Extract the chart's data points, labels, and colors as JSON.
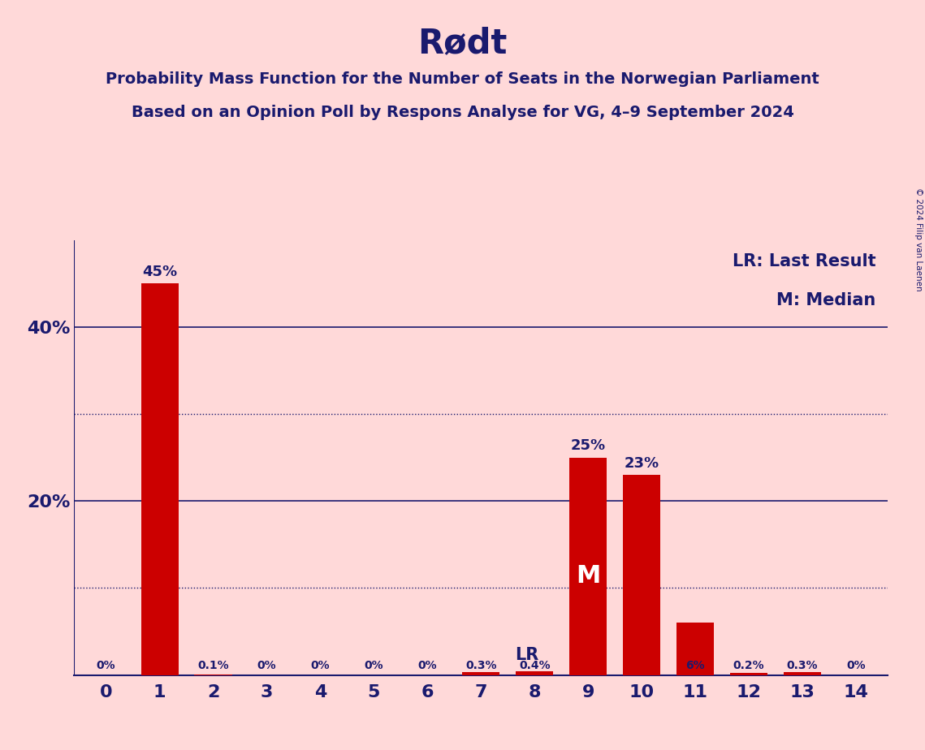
{
  "title": "Rødt",
  "subtitle1": "Probability Mass Function for the Number of Seats in the Norwegian Parliament",
  "subtitle2": "Based on an Opinion Poll by Respons Analyse for VG, 4–9 September 2024",
  "copyright": "© 2024 Filip van Laenen",
  "categories": [
    0,
    1,
    2,
    3,
    4,
    5,
    6,
    7,
    8,
    9,
    10,
    11,
    12,
    13,
    14
  ],
  "values": [
    0.0,
    45.0,
    0.1,
    0.0,
    0.0,
    0.0,
    0.0,
    0.3,
    0.4,
    25.0,
    23.0,
    6.0,
    0.2,
    0.3,
    0.0
  ],
  "bar_color": "#CC0000",
  "background_color": "#FFD9D9",
  "title_color": "#1a1a6e",
  "subtitle_color": "#1a1a6e",
  "axis_color": "#1a1a6e",
  "label_color_dark": "#1a1a6e",
  "label_color_white": "#ffffff",
  "LR_bar": 8,
  "M_bar": 9,
  "solid_gridlines": [
    20.0,
    40.0
  ],
  "dotted_gridlines": [
    10.0,
    30.0
  ],
  "ylim": [
    0,
    50
  ],
  "legend_LR": "LR: Last Result",
  "legend_M": "M: Median",
  "value_labels": [
    "0%",
    "45%",
    "0.1%",
    "0%",
    "0%",
    "0%",
    "0%",
    "0.3%",
    "0.4%",
    "25%",
    "23%",
    "6%",
    "0.2%",
    "0.3%",
    "0%"
  ]
}
